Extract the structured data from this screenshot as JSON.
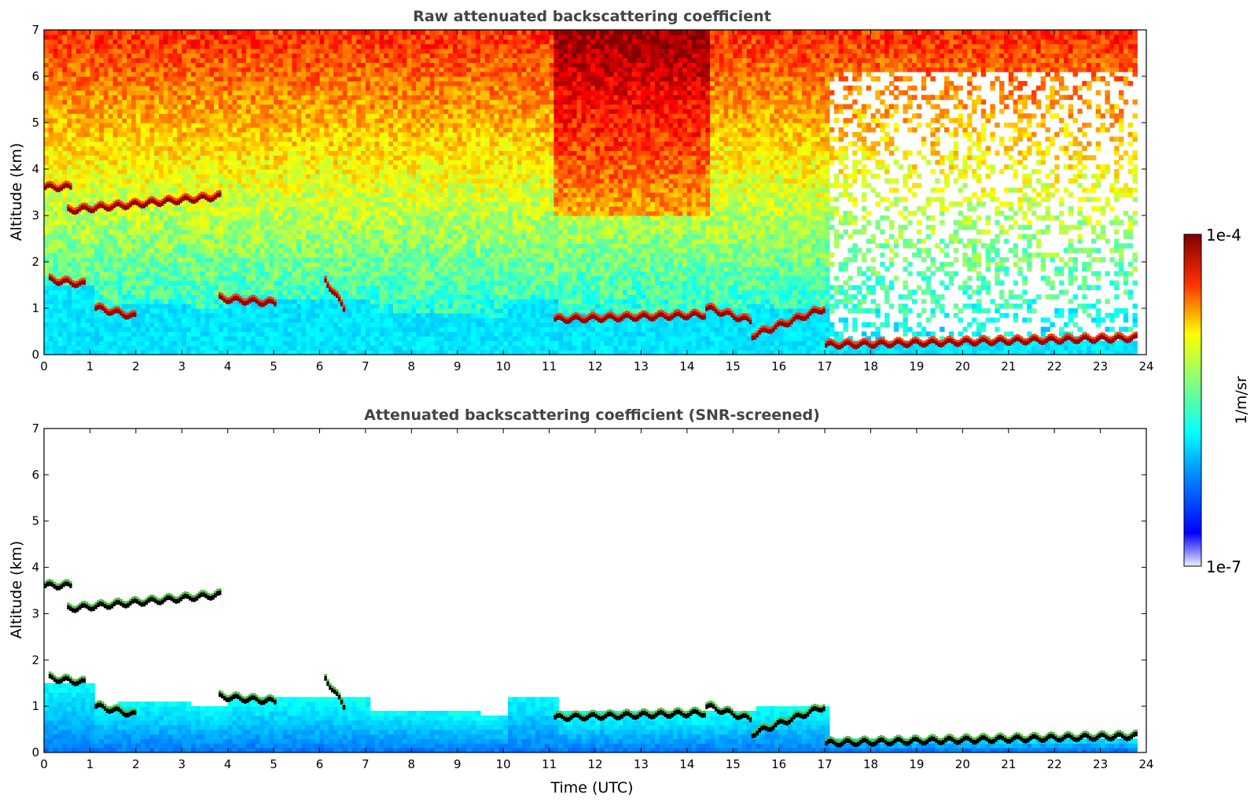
{
  "chart_data": [
    {
      "type": "heatmap",
      "title": "Raw attenuated backscattering coefficient",
      "xlabel": "",
      "ylabel": "Altitude (km)",
      "xlim": [
        0,
        24
      ],
      "ylim": [
        0,
        7
      ],
      "x_ticks": [
        0,
        1,
        2,
        3,
        4,
        5,
        6,
        7,
        8,
        9,
        10,
        11,
        12,
        13,
        14,
        15,
        16,
        17,
        18,
        19,
        20,
        21,
        22,
        23,
        24
      ],
      "y_ticks": [
        0,
        1,
        2,
        3,
        4,
        5,
        6,
        7
      ],
      "screened": false,
      "cloud_layers": [
        {
          "t": [
            0.0,
            0.6
          ],
          "alt": [
            3.6,
            3.6
          ]
        },
        {
          "t": [
            0.5,
            3.8
          ],
          "alt": [
            3.1,
            3.4
          ]
        },
        {
          "t": [
            0.1,
            0.9
          ],
          "alt": [
            1.6,
            1.5
          ]
        },
        {
          "t": [
            1.1,
            2.0
          ],
          "alt": [
            1.0,
            0.8
          ]
        },
        {
          "t": [
            3.8,
            5.0
          ],
          "alt": [
            1.2,
            1.1
          ]
        },
        {
          "t": [
            6.1,
            6.5
          ],
          "alt": [
            1.6,
            1.0
          ]
        },
        {
          "t": [
            11.1,
            14.4
          ],
          "alt": [
            0.75,
            0.85
          ]
        },
        {
          "t": [
            14.4,
            15.4
          ],
          "alt": [
            1.0,
            0.7
          ]
        },
        {
          "t": [
            15.4,
            17.0
          ],
          "alt": [
            0.4,
            1.0
          ]
        },
        {
          "t": [
            17.0,
            23.8
          ],
          "alt": [
            0.2,
            0.35
          ]
        }
      ]
    },
    {
      "type": "heatmap",
      "title": "Attenuated backscattering coefficient (SNR-screened)",
      "xlabel": "Time (UTC)",
      "ylabel": "Altitude (km)",
      "xlim": [
        0,
        24
      ],
      "ylim": [
        0,
        7
      ],
      "x_ticks": [
        0,
        1,
        2,
        3,
        4,
        5,
        6,
        7,
        8,
        9,
        10,
        11,
        12,
        13,
        14,
        15,
        16,
        17,
        18,
        19,
        20,
        21,
        22,
        23,
        24
      ],
      "y_ticks": [
        0,
        1,
        2,
        3,
        4,
        5,
        6,
        7
      ],
      "screened": true,
      "cloud_layers": [
        {
          "t": [
            0.0,
            0.6
          ],
          "alt": [
            3.6,
            3.6
          ]
        },
        {
          "t": [
            0.5,
            3.8
          ],
          "alt": [
            3.1,
            3.4
          ]
        },
        {
          "t": [
            0.1,
            0.9
          ],
          "alt": [
            1.6,
            1.5
          ]
        },
        {
          "t": [
            1.1,
            2.0
          ],
          "alt": [
            1.0,
            0.8
          ]
        },
        {
          "t": [
            3.8,
            5.0
          ],
          "alt": [
            1.2,
            1.1
          ]
        },
        {
          "t": [
            6.1,
            6.5
          ],
          "alt": [
            1.6,
            1.0
          ]
        },
        {
          "t": [
            11.1,
            14.4
          ],
          "alt": [
            0.75,
            0.85
          ]
        },
        {
          "t": [
            14.4,
            15.4
          ],
          "alt": [
            1.0,
            0.7
          ]
        },
        {
          "t": [
            15.4,
            17.0
          ],
          "alt": [
            0.4,
            1.0
          ]
        },
        {
          "t": [
            17.0,
            23.8
          ],
          "alt": [
            0.2,
            0.35
          ]
        }
      ]
    }
  ],
  "colorbar": {
    "label": "1/m/sr",
    "max_label": "1e-4",
    "min_label": "1e-7",
    "scale": "log",
    "range": [
      1e-07,
      0.0001
    ]
  },
  "colors": {
    "jet_low": "#00007f",
    "jet_high": "#7f0000",
    "title_color": "#444444"
  }
}
